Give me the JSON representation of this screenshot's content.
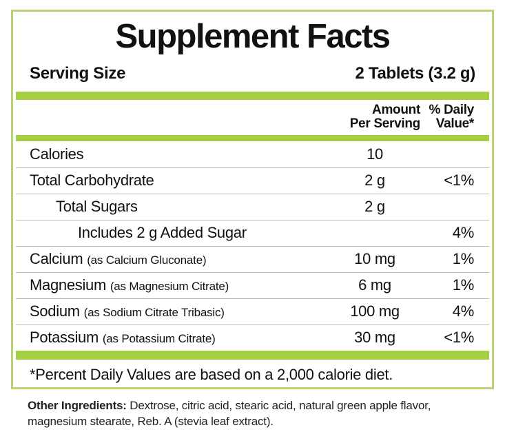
{
  "panel": {
    "title": "Supplement Facts",
    "serving": {
      "label": "Serving Size",
      "value": "2 Tablets (3.2 g)"
    },
    "columns": {
      "amount_line1": "Amount",
      "amount_line2": "Per Serving",
      "dv_line1": "% Daily",
      "dv_line2": "Value*"
    },
    "rows": [
      {
        "label": "Calories",
        "note": "",
        "amount": "10",
        "dv": ""
      },
      {
        "label": "Total Carbohydrate",
        "note": "",
        "amount": "2 g",
        "dv": "<1%"
      },
      {
        "label": "Total Sugars",
        "note": "",
        "amount": "2 g",
        "dv": ""
      },
      {
        "label": "Includes 2 g Added Sugar",
        "note": "",
        "amount": "",
        "dv": "4%"
      },
      {
        "label": "Calcium",
        "note": "(as Calcium Gluconate)",
        "amount": "10 mg",
        "dv": "1%"
      },
      {
        "label": "Magnesium",
        "note": "(as Magnesium Citrate)",
        "amount": "6 mg",
        "dv": "1%"
      },
      {
        "label": "Sodium",
        "note": "(as Sodium Citrate Tribasic)",
        "amount": "100 mg",
        "dv": "4%"
      },
      {
        "label": "Potassium",
        "note": "(as Potassium Citrate)",
        "amount": "30 mg",
        "dv": "<1%"
      }
    ],
    "footnote": "*Percent Daily Values are based on a 2,000 calorie diet."
  },
  "other_ingredients": {
    "label": "Other Ingredients:",
    "text": " Dextrose, citric acid, stearic acid, natural green apple flavor, magnesium stearate, Reb. A (stevia leaf extract)."
  },
  "colors": {
    "accent_bar": "#a6ce43",
    "panel_border": "#b9d273",
    "row_divider": "#b7b7b7",
    "text": "#111111"
  }
}
